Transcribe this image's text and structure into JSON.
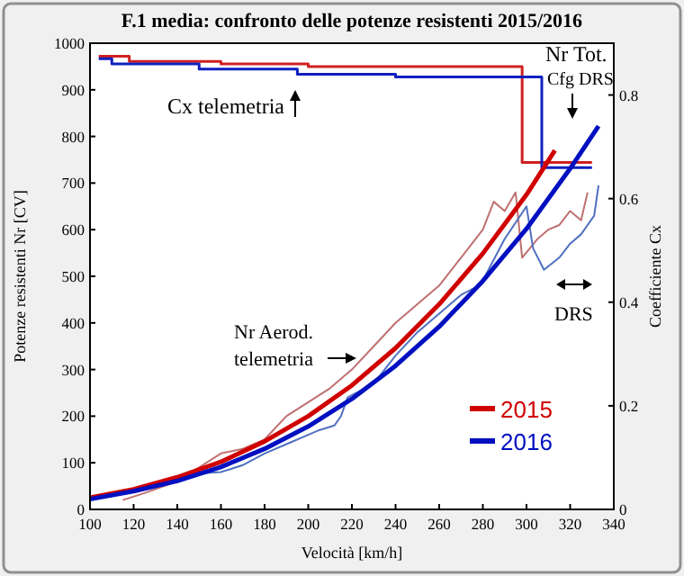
{
  "chart_data": {
    "type": "line",
    "title": "F.1 media: confronto delle potenze resistenti 2015/2016",
    "xlabel": "Velocità  [km/h]",
    "ylabel": "Potenze resistenti Nr  [CV]",
    "y2label": "Coefficiente Cx",
    "xlim": [
      100,
      340
    ],
    "xticks": [
      100,
      120,
      140,
      160,
      180,
      200,
      220,
      240,
      260,
      280,
      300,
      320,
      340
    ],
    "ylim": [
      0,
      1000
    ],
    "yticks": [
      0,
      100,
      200,
      300,
      400,
      500,
      600,
      700,
      800,
      900,
      1000
    ],
    "y2lim": [
      0,
      0.9
    ],
    "y2ticks": [
      0,
      0.2,
      0.4,
      0.6,
      0.8
    ],
    "grid": false,
    "legend": "bottom right",
    "annotations": [
      "Cx telemetria",
      "Nr Tot.",
      "Cfg DRS",
      "Nr Aerod. telemetria",
      "DRS"
    ],
    "series": [
      {
        "type": "step",
        "axis": "y2",
        "color": "#d02020",
        "x": [
          104,
          118,
          160,
          200,
          298,
          330
        ],
        "values": [
          0.875,
          0.865,
          0.86,
          0.855,
          0.67,
          0.67
        ]
      },
      {
        "type": "step",
        "axis": "y2",
        "color": "#1020c0",
        "x": [
          104,
          110,
          150,
          195,
          240,
          307,
          330
        ],
        "values": [
          0.87,
          0.86,
          0.85,
          0.84,
          0.835,
          0.66,
          0.66
        ]
      },
      {
        "color": "#c07070",
        "x": [
          115,
          125,
          140,
          150,
          160,
          170,
          180,
          190,
          200,
          210,
          220,
          230,
          240,
          250,
          260,
          270,
          280,
          285,
          290,
          295,
          298,
          305,
          310,
          315,
          320,
          325,
          328
        ],
        "values": [
          20,
          35,
          60,
          90,
          120,
          130,
          150,
          200,
          230,
          260,
          300,
          350,
          400,
          440,
          480,
          540,
          600,
          660,
          640,
          680,
          540,
          580,
          600,
          610,
          640,
          620,
          680
        ]
      },
      {
        "color": "#5070c0",
        "x": [
          150,
          160,
          170,
          180,
          190,
          200,
          205,
          212,
          215,
          218,
          230,
          240,
          250,
          260,
          270,
          279,
          290,
          300,
          303,
          308,
          315,
          320,
          325,
          331,
          333
        ],
        "values": [
          77,
          80,
          95,
          120,
          140,
          160,
          170,
          180,
          200,
          240,
          270,
          330,
          380,
          420,
          460,
          482,
          580,
          650,
          560,
          514,
          540,
          570,
          590,
          630,
          695
        ]
      },
      {
        "name": "2015",
        "color": "#d00000",
        "x": [
          100,
          120,
          140,
          160,
          180,
          200,
          220,
          240,
          260,
          280,
          300,
          313
        ],
        "values": [
          25,
          43,
          69,
          102,
          146,
          200,
          266,
          346,
          440,
          549,
          675,
          770
        ]
      },
      {
        "name": "2016",
        "color": "#0010c0",
        "x": [
          100,
          120,
          140,
          160,
          180,
          200,
          220,
          240,
          260,
          280,
          300,
          320,
          333
        ],
        "values": [
          22,
          39,
          61,
          91,
          130,
          178,
          237,
          308,
          392,
          490,
          602,
          731,
          822
        ]
      }
    ]
  }
}
